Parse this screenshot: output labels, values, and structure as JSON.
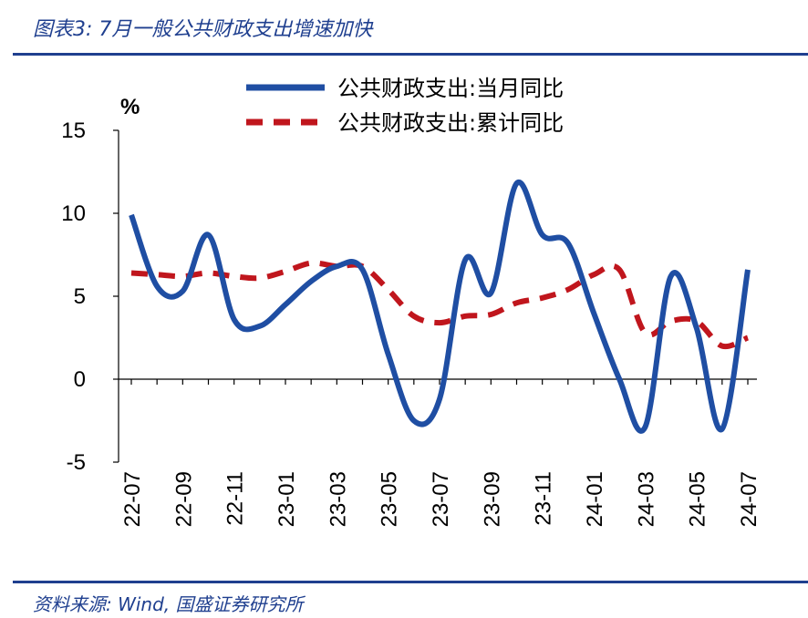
{
  "title": "图表3: 7月一般公共财政支出增速加快",
  "source": "资料来源: Wind, 国盛证券研究所",
  "colors": {
    "accent": "#1f3f8f",
    "series_monthly": "#1f4ea3",
    "series_cumulative": "#c0161d"
  },
  "chart_data": {
    "type": "line",
    "ylabel": "%",
    "ylim": [
      -5,
      15
    ],
    "yticks": [
      15,
      10,
      5,
      0,
      -5
    ],
    "x": [
      "2022-07",
      "2022-08",
      "2022-09",
      "2022-10",
      "2022-11",
      "2022-12",
      "2023-01",
      "2023-02",
      "2023-03",
      "2023-04",
      "2023-05",
      "2023-06",
      "2023-07",
      "2023-08",
      "2023-09",
      "2023-10",
      "2023-11",
      "2023-12",
      "2024-01",
      "2024-02",
      "2024-03",
      "2024-04",
      "2024-05",
      "2024-06",
      "2024-07"
    ],
    "xtick_labels": [
      "22-07",
      "22-09",
      "22-11",
      "23-01",
      "23-03",
      "23-05",
      "23-07",
      "23-09",
      "23-11",
      "24-01",
      "24-03",
      "24-05",
      "24-07"
    ],
    "legend_position": "top",
    "series": [
      {
        "name": "公共财政支出:当月同比",
        "style": "solid",
        "values": [
          9.9,
          5.6,
          5.3,
          8.7,
          3.6,
          3.2,
          4.5,
          5.9,
          6.8,
          6.6,
          1.5,
          -2.5,
          -1.2,
          7.2,
          5.2,
          11.8,
          8.7,
          8.2,
          4.0,
          0.0,
          -2.9,
          6.2,
          3.1,
          -3.0,
          6.6
        ]
      },
      {
        "name": "公共财政支出:累计同比",
        "style": "dashed",
        "values": [
          6.4,
          6.3,
          6.2,
          6.4,
          6.2,
          6.1,
          6.5,
          7.0,
          6.8,
          6.8,
          5.4,
          3.8,
          3.4,
          3.8,
          3.9,
          4.6,
          4.9,
          5.4,
          6.3,
          6.6,
          2.8,
          3.5,
          3.5,
          2.0,
          2.5
        ]
      }
    ]
  }
}
